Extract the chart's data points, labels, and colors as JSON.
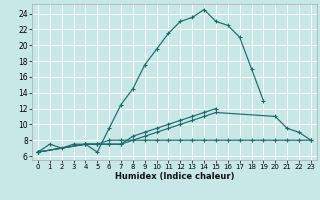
{
  "background_color": "#c8e8e8",
  "grid_color": "#ffffff",
  "line_color": "#1a6b6b",
  "xlabel": "Humidex (Indice chaleur)",
  "xlim": [
    -0.5,
    23.5
  ],
  "ylim": [
    5.5,
    25.2
  ],
  "xticks": [
    0,
    1,
    2,
    3,
    4,
    5,
    6,
    7,
    8,
    9,
    10,
    11,
    12,
    13,
    14,
    15,
    16,
    17,
    18,
    19,
    20,
    21,
    22,
    23
  ],
  "yticks": [
    6,
    8,
    10,
    12,
    14,
    16,
    18,
    20,
    22,
    24
  ],
  "series": [
    {
      "x": [
        0,
        1,
        2,
        3,
        4,
        5,
        6,
        7,
        8,
        9,
        10,
        11,
        12,
        13,
        14,
        15,
        16,
        17,
        18,
        19
      ],
      "y": [
        6.5,
        7.5,
        7.0,
        7.5,
        7.5,
        6.5,
        9.5,
        12.5,
        14.5,
        17.5,
        19.5,
        21.5,
        23.0,
        23.5,
        24.5,
        23.0,
        22.5,
        21.0,
        17.0,
        13.0
      ]
    },
    {
      "x": [
        0,
        4,
        5,
        6,
        7,
        8,
        9,
        10,
        11,
        12,
        13,
        14,
        15,
        20,
        21,
        22,
        23
      ],
      "y": [
        6.5,
        7.5,
        7.5,
        7.5,
        7.5,
        8.0,
        8.5,
        9.0,
        9.5,
        10.0,
        10.5,
        11.0,
        11.5,
        11.0,
        9.5,
        9.0,
        8.0
      ]
    },
    {
      "x": [
        0,
        4,
        5,
        6,
        7,
        8,
        9,
        10,
        11,
        12,
        13,
        14,
        15
      ],
      "y": [
        6.5,
        7.5,
        7.5,
        7.5,
        7.5,
        8.5,
        9.0,
        9.5,
        10.0,
        10.5,
        11.0,
        11.5,
        12.0
      ]
    },
    {
      "x": [
        0,
        4,
        5,
        6,
        7,
        8,
        9,
        10,
        11,
        12,
        13,
        14,
        15,
        16,
        17,
        18,
        19,
        20,
        21,
        22,
        23
      ],
      "y": [
        6.5,
        7.5,
        7.5,
        8.0,
        8.0,
        8.0,
        8.0,
        8.0,
        8.0,
        8.0,
        8.0,
        8.0,
        8.0,
        8.0,
        8.0,
        8.0,
        8.0,
        8.0,
        8.0,
        8.0,
        8.0
      ]
    }
  ]
}
